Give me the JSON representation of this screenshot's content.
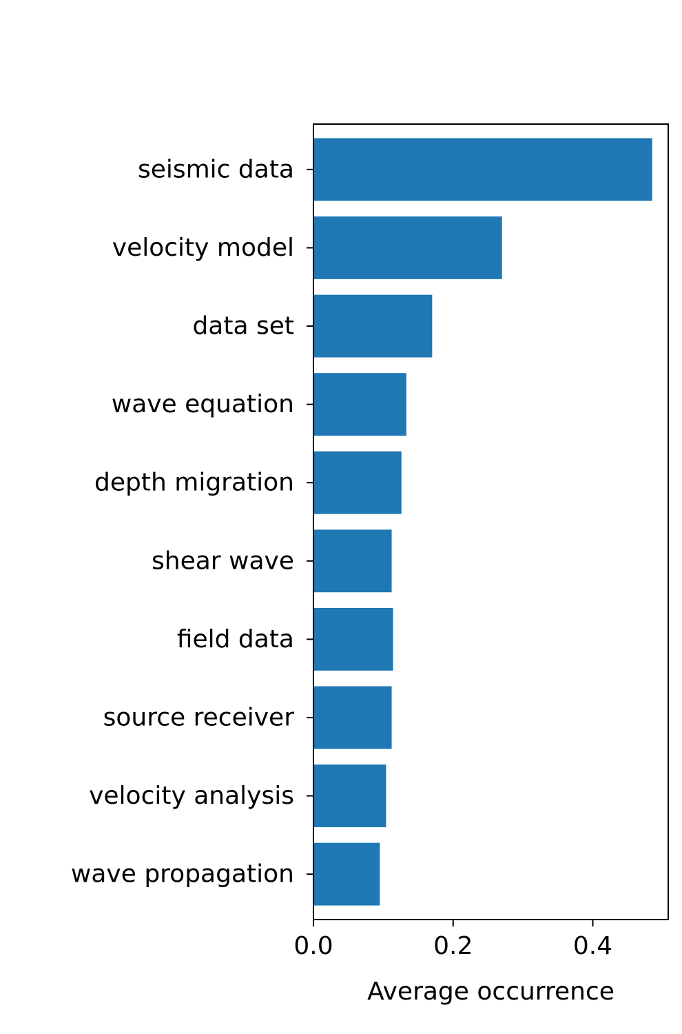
{
  "chart_data": {
    "type": "bar",
    "orientation": "horizontal",
    "categories": [
      "seismic data",
      "velocity model",
      "data set",
      "wave equation",
      "depth migration",
      "shear wave",
      "field data",
      "source receiver",
      "velocity analysis",
      "wave propagation"
    ],
    "values": [
      0.485,
      0.27,
      0.17,
      0.133,
      0.126,
      0.112,
      0.114,
      0.112,
      0.104,
      0.095
    ],
    "xlabel": "Average occurrence",
    "ylabel": "",
    "title": "",
    "xlim": [
      0,
      0.508
    ],
    "xticks": [
      0.0,
      0.2,
      0.4
    ],
    "xtick_labels": [
      "0.0",
      "0.2",
      "0.4"
    ],
    "bar_color": "#1f77b4",
    "grid": false,
    "legend": "none"
  }
}
